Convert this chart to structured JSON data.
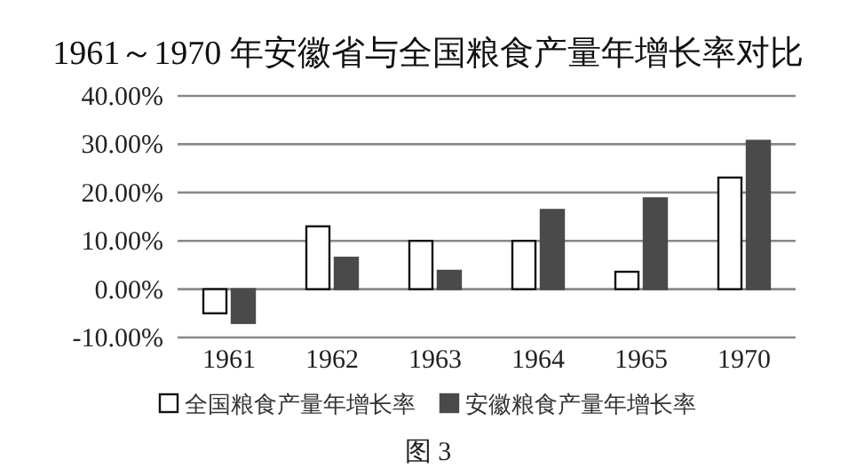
{
  "chart_data": {
    "type": "bar",
    "title": "1961～1970 年安徽省与全国粮食产量年增长率对比",
    "categories": [
      "1961",
      "1962",
      "1963",
      "1964",
      "1965",
      "1970"
    ],
    "series": [
      {
        "name": "全国粮食产量年增长率",
        "color": "#ffffff",
        "values": [
          -5,
          13,
          10,
          10,
          3.6,
          23.1
        ]
      },
      {
        "name": "安徽粮食产量年增长率",
        "color": "#4a4a4a",
        "values": [
          -7,
          6.5,
          3.8,
          16.4,
          18.8,
          30.7
        ]
      }
    ],
    "ylim": [
      -10,
      40
    ],
    "yticks": [
      {
        "value": -10,
        "label": "-10.00%"
      },
      {
        "value": 0,
        "label": "0.00%"
      },
      {
        "value": 10,
        "label": "10.00%"
      },
      {
        "value": 20,
        "label": "20.00%"
      },
      {
        "value": 30,
        "label": "30.00%"
      },
      {
        "value": 40,
        "label": "40.00%"
      }
    ],
    "grid": "y",
    "legend": "bottom",
    "annotations": [
      "图 3"
    ]
  }
}
